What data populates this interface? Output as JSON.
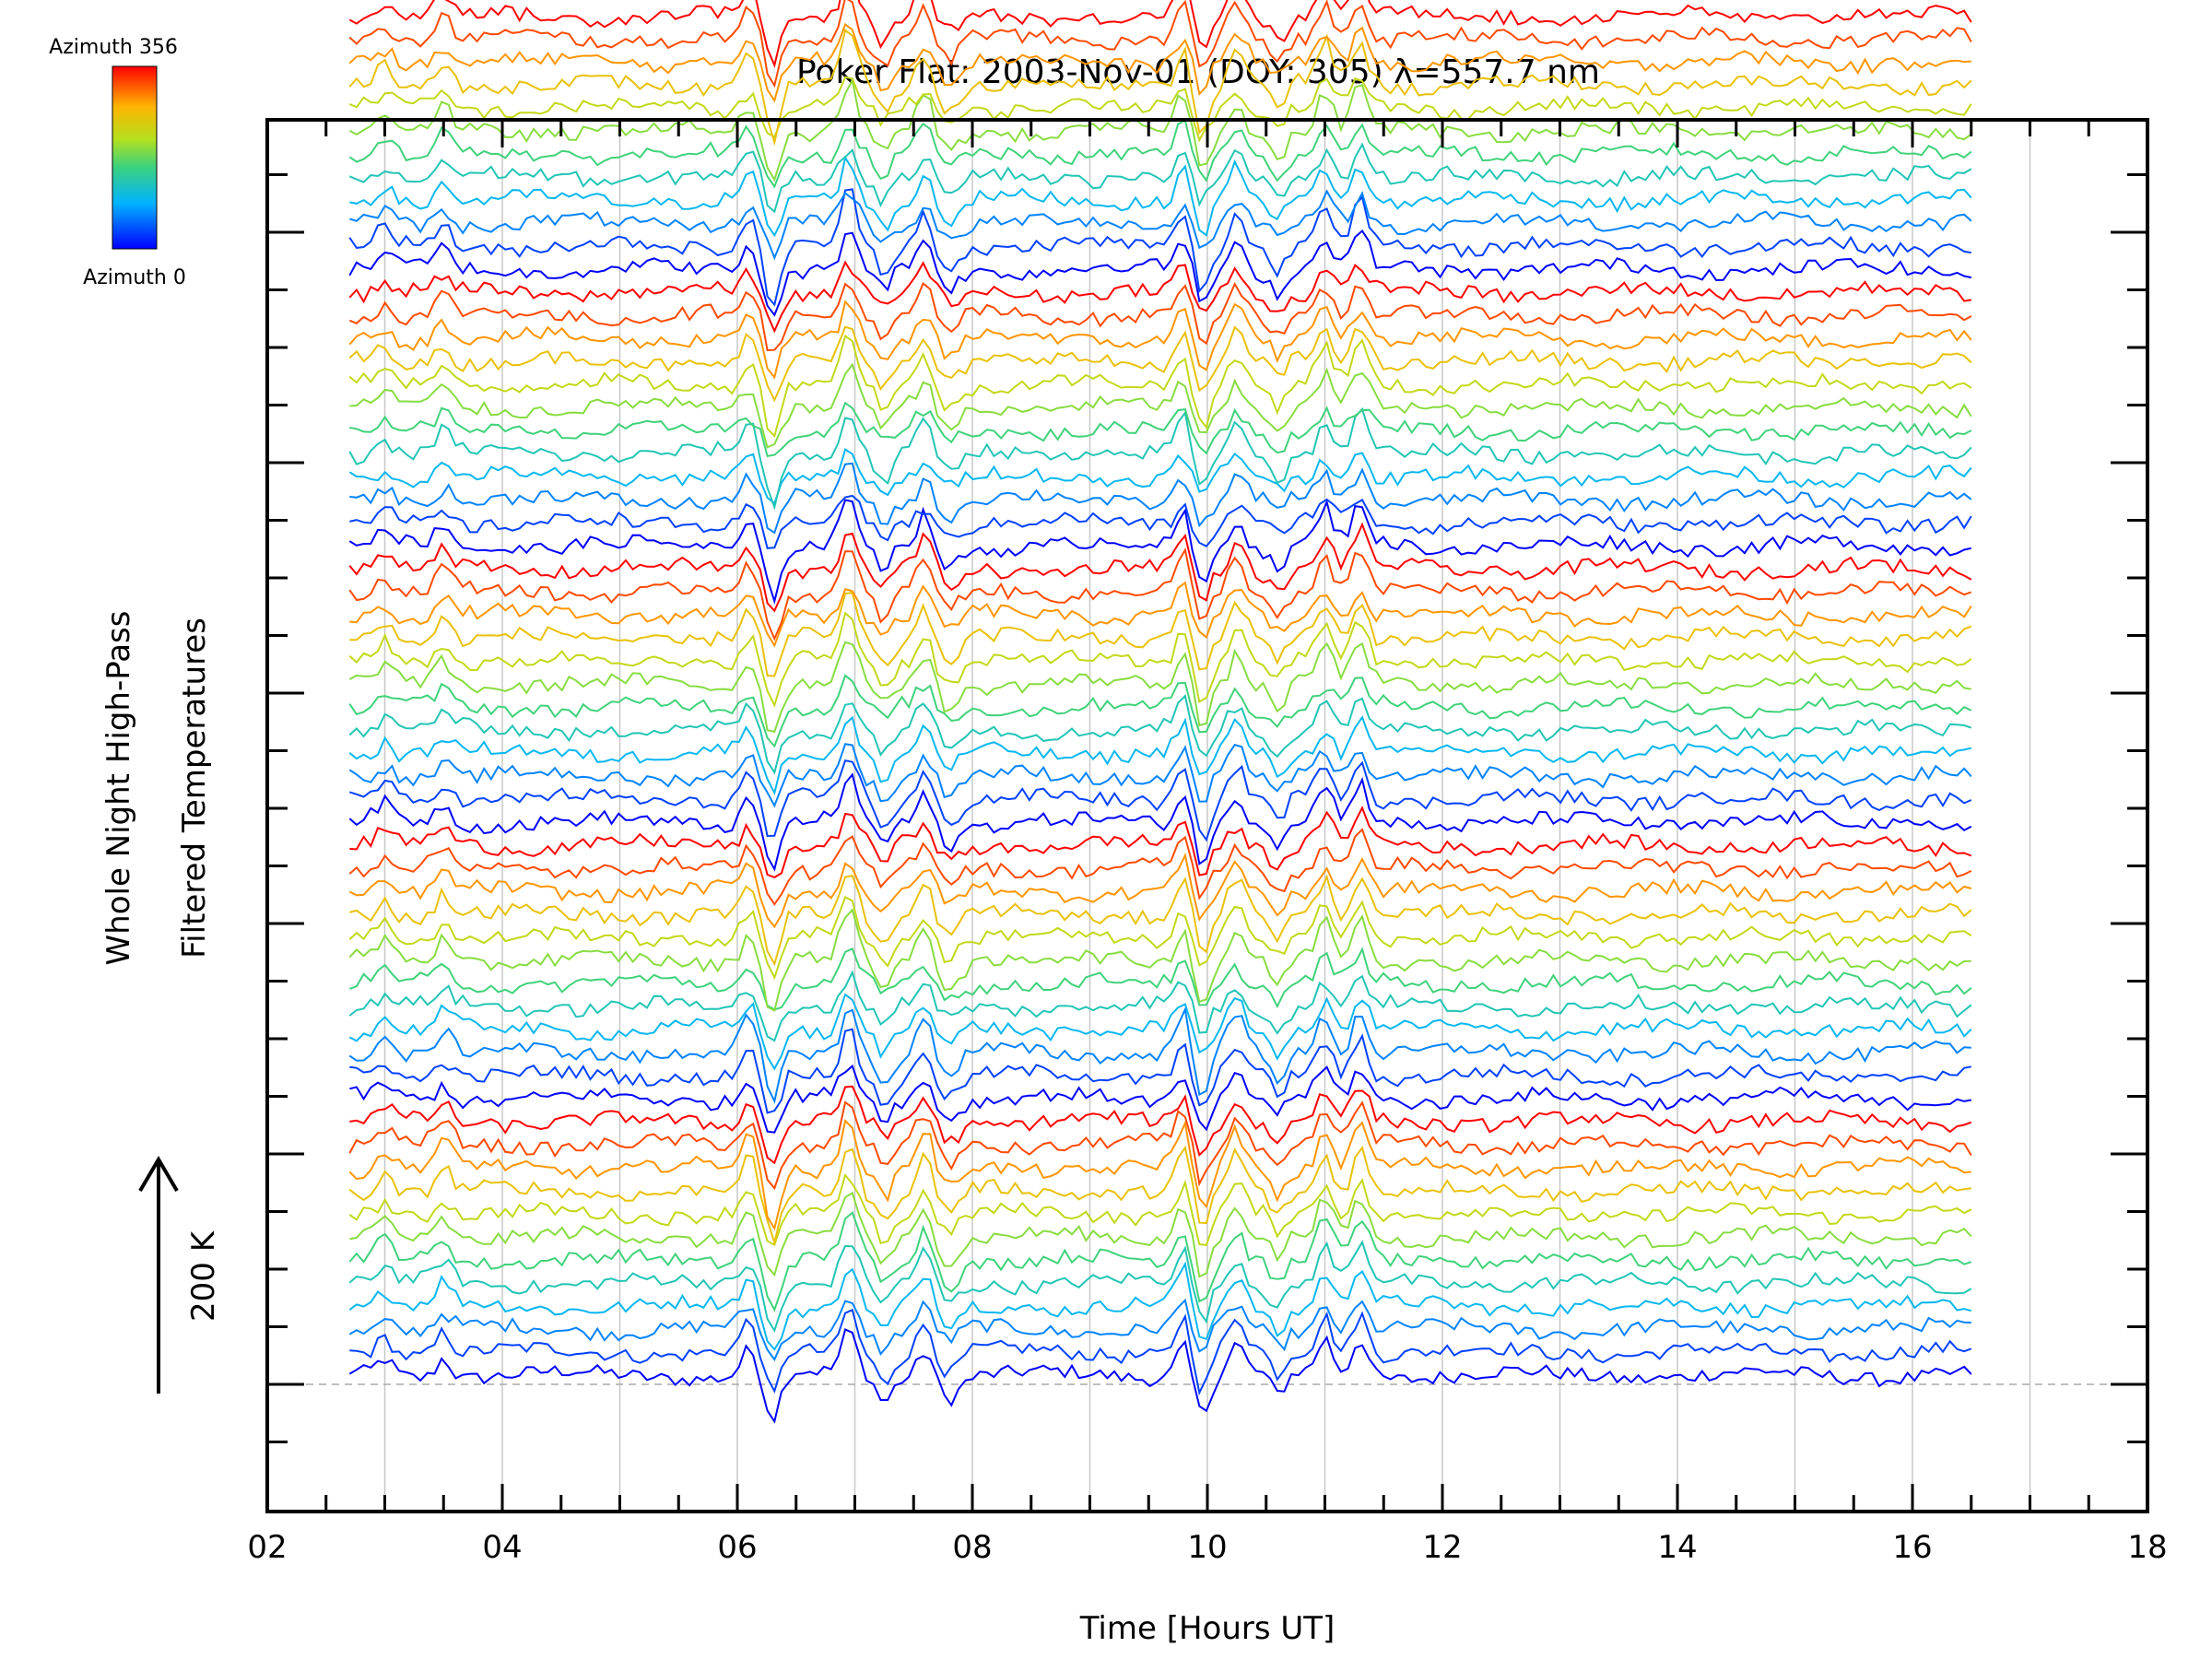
{
  "chart_data": {
    "type": "line",
    "title": "Poker Flat: 2003-Nov-01 (DOY: 305) λ=557.7 nm",
    "xlabel": "Time [Hours UT]",
    "ylabel_lines": [
      "Whole Night High-Pass",
      "Filtered Temperatures"
    ],
    "scale_label": "200 K",
    "scale_kelvin": 200,
    "x_unit": "hours UT",
    "xlim": [
      2,
      18
    ],
    "x_tick_labels": [
      "02",
      "04",
      "06",
      "08",
      "10",
      "12",
      "14",
      "16",
      "18"
    ],
    "x_tick_values": [
      2,
      4,
      6,
      8,
      10,
      12,
      14,
      16,
      18
    ],
    "time_range": [
      2.7,
      16.5
    ],
    "grid": "vertical dotted lines every hour",
    "colorbar": {
      "top_label": "Azimuth 356",
      "bottom_label": "Azimuth 0",
      "colormap": "jet",
      "range": [
        0,
        356
      ]
    },
    "stack": {
      "groups": 5,
      "traces_per_group": 12,
      "trace_offset_kelvin": 20,
      "description_order": "bottom group to top group, azimuth 0 to 356 within each group"
    },
    "events_hours": [
      3.0,
      3.5,
      6.1,
      6.3,
      6.95,
      7.25,
      7.6,
      9.8,
      9.95,
      10.25,
      10.6,
      11.0,
      11.3
    ],
    "colors": {
      "azimuth_low": "#1010ff",
      "azimuth_high": "#ff1010",
      "axis": "#000000",
      "grid": "#c8c8c8",
      "baseline": "#aaaaaa"
    }
  }
}
